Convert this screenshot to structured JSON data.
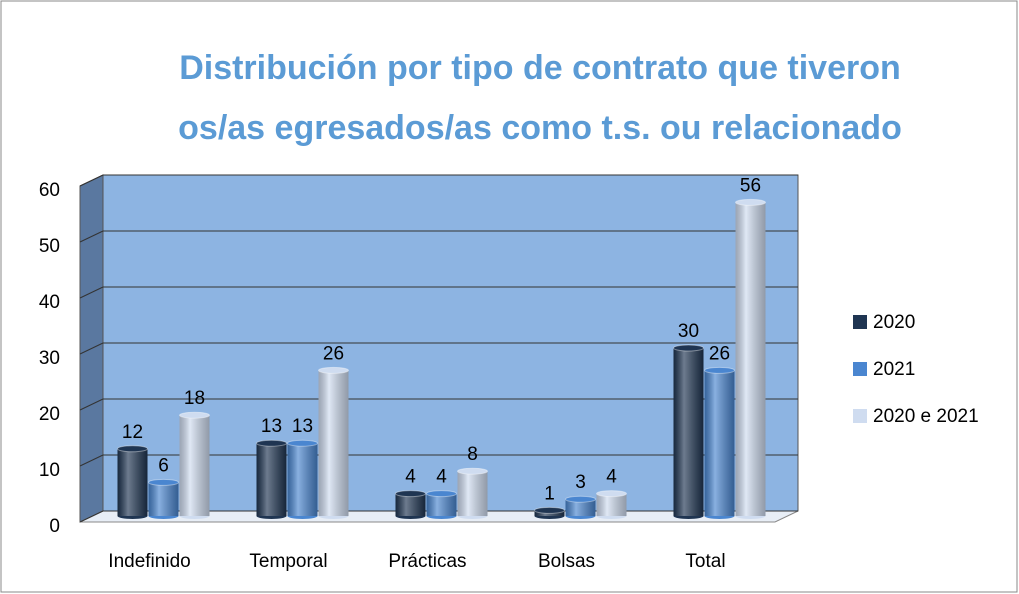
{
  "chart_data": {
    "type": "bar3d",
    "title": "Distribución por tipo de contrato que tiveron",
    "subtitle": "os/as egresados/as como t.s. ou relacionado",
    "categories": [
      "Indefinido",
      "Temporal",
      "Prácticas",
      "Bolsas",
      "Total"
    ],
    "series": [
      {
        "name": "2020",
        "color": "#1f3552",
        "values": [
          12,
          13,
          4,
          1,
          30
        ]
      },
      {
        "name": "2021",
        "color": "#4a86d0",
        "values": [
          6,
          13,
          4,
          3,
          26
        ]
      },
      {
        "name": "2020 e 2021",
        "color": "#cfdcf0",
        "values": [
          18,
          26,
          8,
          4,
          56
        ]
      }
    ],
    "ylim": [
      0,
      60
    ],
    "yticks": [
      0,
      10,
      20,
      30,
      40,
      50,
      60
    ],
    "grid": true,
    "legend": "right"
  }
}
